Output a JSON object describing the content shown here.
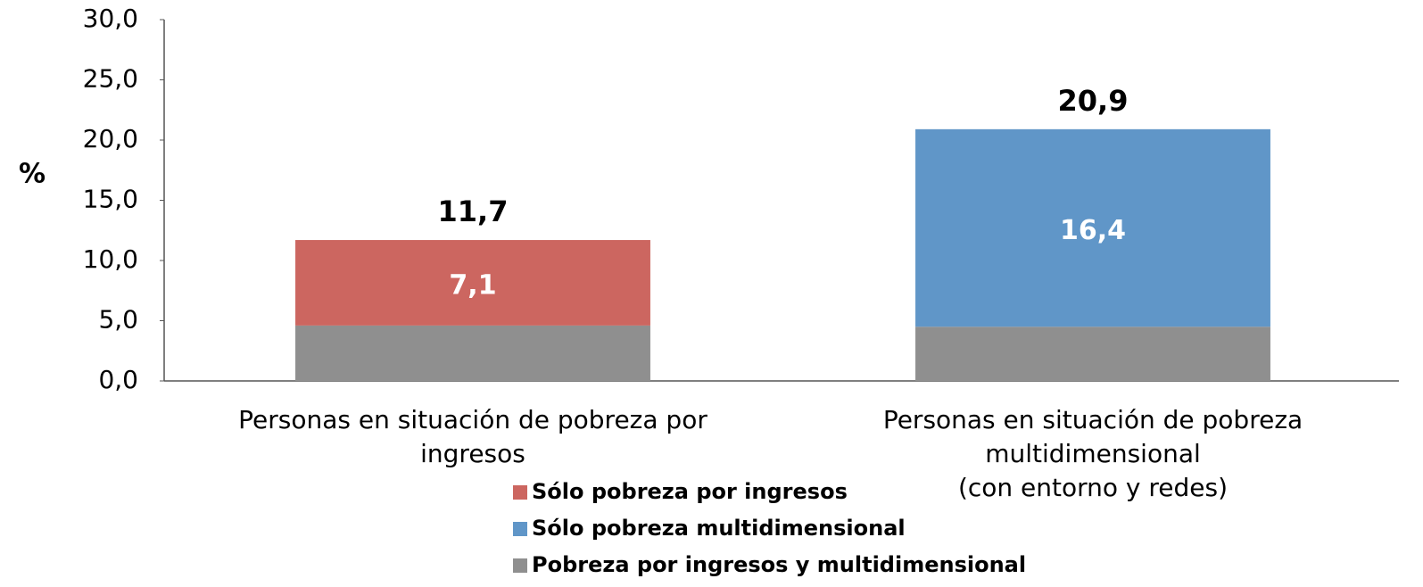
{
  "chart_data": {
    "type": "stacked_bar",
    "y_label": "%",
    "categories": [
      "Personas en situación de pobreza por ingresos",
      "Personas en situación de pobreza multidimensional\n(con entorno y redes)"
    ],
    "series": [
      {
        "name": "Sólo pobreza por ingresos",
        "color": "#cc6660",
        "values": [
          7.1,
          null
        ],
        "value_labels": [
          "7,1",
          null
        ]
      },
      {
        "name": "Sólo pobreza multidimensional",
        "color": "#6096c8",
        "values": [
          null,
          16.4
        ],
        "value_labels": [
          null,
          "16,4"
        ]
      },
      {
        "name": "Pobreza por ingresos y multidimensional",
        "color": "#8f8f8f",
        "values": [
          4.6,
          4.5
        ]
      }
    ],
    "totals": [
      11.7,
      20.9
    ],
    "total_labels": [
      "11,7",
      "20,9"
    ],
    "ylim": [
      0,
      30
    ],
    "yticks": [
      {
        "value": 0,
        "label": "0,0"
      },
      {
        "value": 5,
        "label": "5,0"
      },
      {
        "value": 10,
        "label": "10,0"
      },
      {
        "value": 15,
        "label": "15,0"
      },
      {
        "value": 20,
        "label": "20,0"
      },
      {
        "value": 25,
        "label": "25,0"
      },
      {
        "value": 30,
        "label": "30,0"
      }
    ],
    "grid": false,
    "legend": "bottom"
  }
}
